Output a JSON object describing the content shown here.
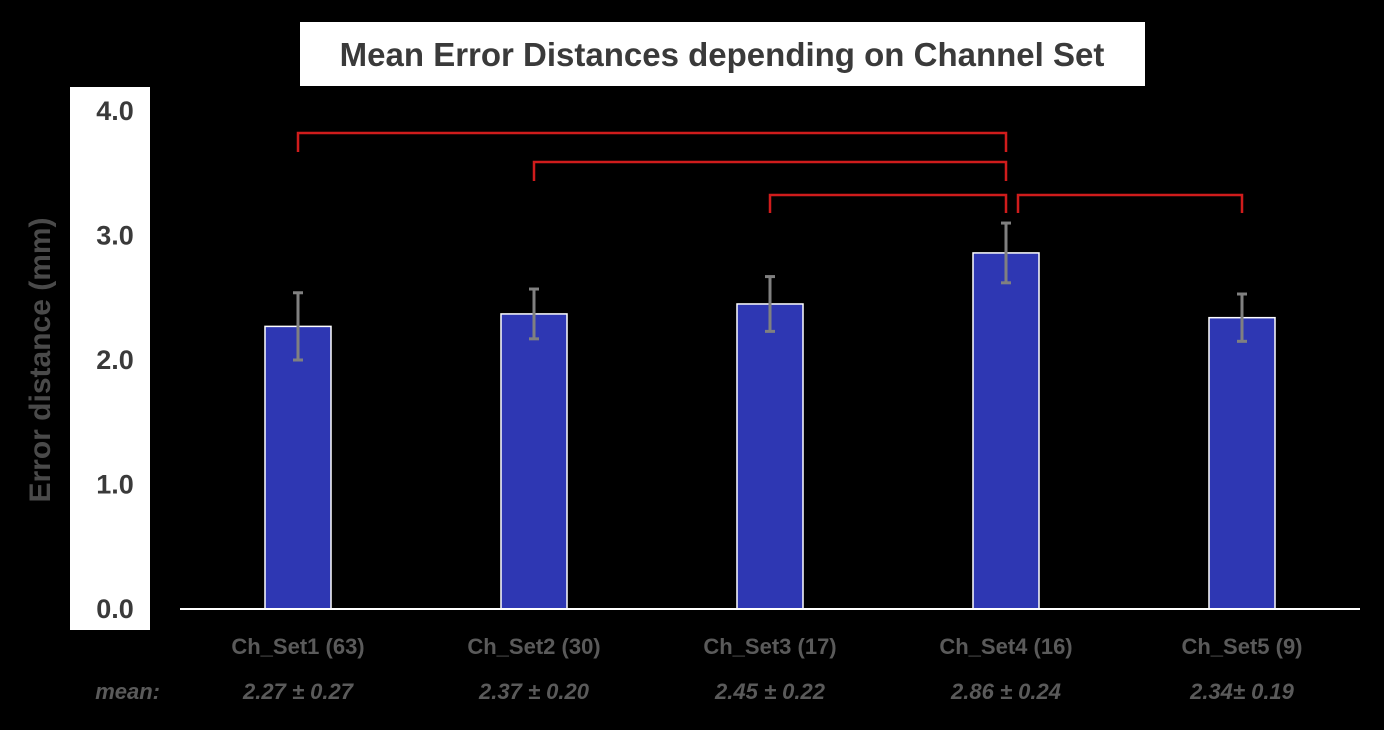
{
  "chart_data": {
    "type": "bar",
    "title": "Mean Error Distances depending on Channel Set",
    "ylabel": "Error distance (mm)",
    "xlabel": "",
    "ylim": [
      0,
      4
    ],
    "yticks": [
      "0.0",
      "1.0",
      "2.0",
      "3.0",
      "4.0"
    ],
    "grid": false,
    "categories": [
      "Ch_Set1 (63)",
      "Ch_Set2 (30)",
      "Ch_Set3 (17)",
      "Ch_Set4 (16)",
      "Ch_Set5 (9)"
    ],
    "values": [
      2.27,
      2.37,
      2.45,
      2.86,
      2.34
    ],
    "errors": [
      0.27,
      0.2,
      0.22,
      0.24,
      0.19
    ],
    "mean_label": "mean:",
    "mean_texts": [
      "2.27 ± 0.27",
      "2.37 ± 0.20",
      "2.45 ± 0.22",
      "2.86 ± 0.24",
      "2.34± 0.19"
    ],
    "significance_brackets": [
      {
        "from": 0,
        "to": 3
      },
      {
        "from": 1,
        "to": 3
      },
      {
        "from": 2,
        "to": 3
      },
      {
        "from": 3,
        "to": 4
      }
    ],
    "colors": {
      "background": "#000000",
      "bar": "#2e37b3",
      "bar_outline": "#ffffff",
      "error_bar": "#808080",
      "bracket": "#d01c1c",
      "panel": "#ffffff"
    }
  }
}
